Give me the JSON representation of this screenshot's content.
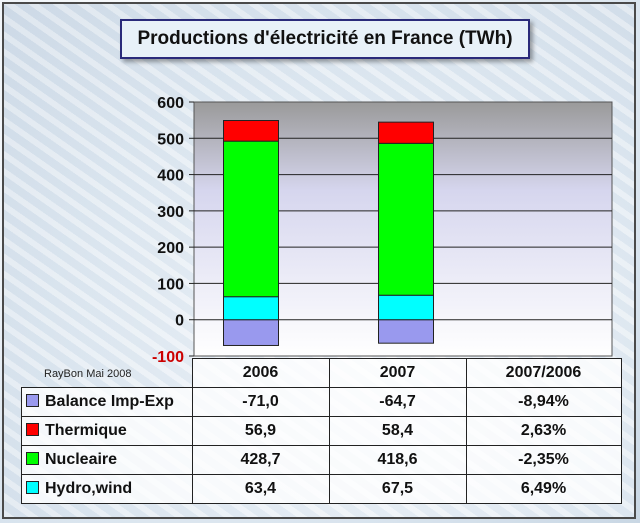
{
  "title": "Productions d'électricité en France (TWh)",
  "credit": "RayBon Mai 2008",
  "chart_data": {
    "type": "bar",
    "stacked": true,
    "categories": [
      "2006",
      "2007"
    ],
    "ylim": [
      -100,
      600
    ],
    "yticks": [
      "600",
      "500",
      "400",
      "300",
      "200",
      "100",
      "0",
      "-100"
    ],
    "ytick_values": [
      600,
      500,
      400,
      300,
      200,
      100,
      0,
      -100
    ],
    "grid": true,
    "series": [
      {
        "name": "Balance Imp-Exp",
        "color": "#9999ee",
        "values": [
          -71.0,
          -64.7
        ]
      },
      {
        "name": "Hydro,wind",
        "color": "#00ffff",
        "values": [
          63.4,
          67.5
        ]
      },
      {
        "name": "Nucleaire",
        "color": "#00ff00",
        "values": [
          428.7,
          418.6
        ]
      },
      {
        "name": "Thermique",
        "color": "#ff0000",
        "values": [
          56.9,
          58.4
        ]
      }
    ]
  },
  "table": {
    "headers": [
      "2006",
      "2007",
      "2007/2006"
    ],
    "rows": [
      {
        "label": "Balance Imp-Exp",
        "color": "#9999ee",
        "v2006": "-71,0",
        "v2007": "-64,7",
        "ratio": "-8,94%"
      },
      {
        "label": "Thermique",
        "color": "#ff0000",
        "v2006": "56,9",
        "v2007": "58,4",
        "ratio": "2,63%"
      },
      {
        "label": "Nucleaire",
        "color": "#00ff00",
        "v2006": "428,7",
        "v2007": "418,6",
        "ratio": "-2,35%"
      },
      {
        "label": "Hydro,wind",
        "color": "#00ffff",
        "v2006": "63,4",
        "v2007": "67,5",
        "ratio": "6,49%"
      }
    ]
  }
}
